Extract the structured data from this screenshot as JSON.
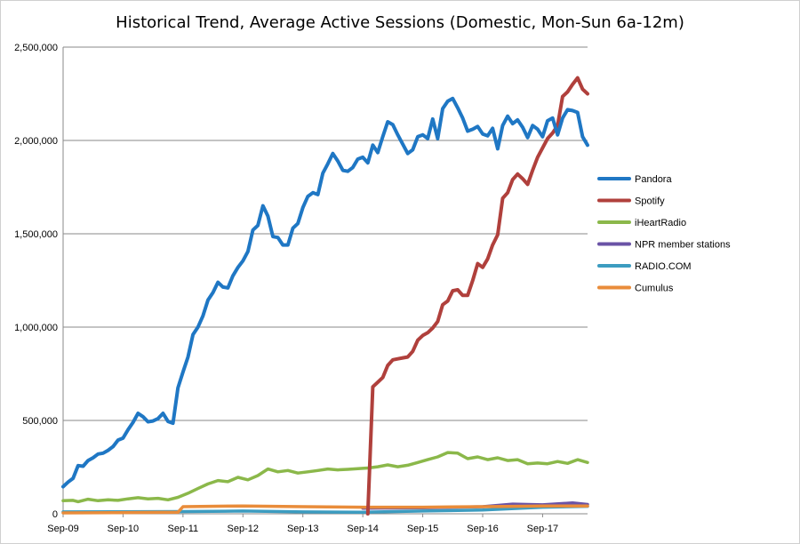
{
  "chart_data": {
    "type": "line",
    "title": "Historical Trend, Average Active Sessions (Domestic, Mon-Sun 6a-12m)",
    "xlabel": "",
    "ylabel": "",
    "ylim": [
      0,
      2500000
    ],
    "y_ticks": [
      0,
      500000,
      1000000,
      1500000,
      2000000,
      2500000
    ],
    "y_tick_labels": [
      "0",
      "500,000",
      "1,000,000",
      "1,500,000",
      "2,000,000",
      "2,500,000"
    ],
    "x_ticks": [
      "Sep-09",
      "Sep-10",
      "Sep-11",
      "Sep-12",
      "Sep-13",
      "Sep-14",
      "Sep-15",
      "Sep-16",
      "Sep-17"
    ],
    "grid": true,
    "legend_position": "right",
    "series": [
      {
        "name": "Pandora",
        "color": "#1F77C4",
        "points": [
          [
            "2009-09",
            145000
          ],
          [
            "2009-10",
            170000
          ],
          [
            "2009-11",
            190000
          ],
          [
            "2009-12",
            258000
          ],
          [
            "2010-01",
            255000
          ],
          [
            "2010-02",
            285000
          ],
          [
            "2010-03",
            300000
          ],
          [
            "2010-04",
            320000
          ],
          [
            "2010-05",
            325000
          ],
          [
            "2010-06",
            340000
          ],
          [
            "2010-07",
            360000
          ],
          [
            "2010-08",
            395000
          ],
          [
            "2010-09",
            405000
          ],
          [
            "2010-10",
            450000
          ],
          [
            "2010-11",
            490000
          ],
          [
            "2010-12",
            538000
          ],
          [
            "2011-01",
            520000
          ],
          [
            "2011-02",
            493000
          ],
          [
            "2011-03",
            497000
          ],
          [
            "2011-04",
            510000
          ],
          [
            "2011-05",
            538000
          ],
          [
            "2011-06",
            495000
          ],
          [
            "2011-07",
            485000
          ],
          [
            "2011-08",
            675000
          ],
          [
            "2011-09",
            760000
          ],
          [
            "2011-10",
            840000
          ],
          [
            "2011-11",
            960000
          ],
          [
            "2011-12",
            1000000
          ],
          [
            "2012-01",
            1060000
          ],
          [
            "2012-02",
            1145000
          ],
          [
            "2012-03",
            1185000
          ],
          [
            "2012-04",
            1240000
          ],
          [
            "2012-05",
            1215000
          ],
          [
            "2012-06",
            1210000
          ],
          [
            "2012-07",
            1275000
          ],
          [
            "2012-08",
            1320000
          ],
          [
            "2012-09",
            1355000
          ],
          [
            "2012-10",
            1405000
          ],
          [
            "2012-11",
            1520000
          ],
          [
            "2012-12",
            1545000
          ],
          [
            "2013-01",
            1650000
          ],
          [
            "2013-02",
            1595000
          ],
          [
            "2013-03",
            1485000
          ],
          [
            "2013-04",
            1480000
          ],
          [
            "2013-05",
            1440000
          ],
          [
            "2013-06",
            1440000
          ],
          [
            "2013-07",
            1530000
          ],
          [
            "2013-08",
            1555000
          ],
          [
            "2013-09",
            1640000
          ],
          [
            "2013-10",
            1700000
          ],
          [
            "2013-11",
            1720000
          ],
          [
            "2013-12",
            1710000
          ],
          [
            "2014-01",
            1825000
          ],
          [
            "2014-02",
            1875000
          ],
          [
            "2014-03",
            1930000
          ],
          [
            "2014-04",
            1890000
          ],
          [
            "2014-05",
            1840000
          ],
          [
            "2014-06",
            1835000
          ],
          [
            "2014-07",
            1855000
          ],
          [
            "2014-08",
            1900000
          ],
          [
            "2014-09",
            1910000
          ],
          [
            "2014-10",
            1880000
          ],
          [
            "2014-11",
            1975000
          ],
          [
            "2014-12",
            1935000
          ],
          [
            "2015-01",
            2020000
          ],
          [
            "2015-02",
            2100000
          ],
          [
            "2015-03",
            2085000
          ],
          [
            "2015-04",
            2030000
          ],
          [
            "2015-05",
            1980000
          ],
          [
            "2015-06",
            1930000
          ],
          [
            "2015-07",
            1950000
          ],
          [
            "2015-08",
            2020000
          ],
          [
            "2015-09",
            2030000
          ],
          [
            "2015-10",
            2010000
          ],
          [
            "2015-11",
            2115000
          ],
          [
            "2015-12",
            2010000
          ],
          [
            "2016-01",
            2170000
          ],
          [
            "2016-02",
            2210000
          ],
          [
            "2016-03",
            2225000
          ],
          [
            "2016-04",
            2175000
          ],
          [
            "2016-05",
            2120000
          ],
          [
            "2016-06",
            2050000
          ],
          [
            "2016-07",
            2060000
          ],
          [
            "2016-08",
            2075000
          ],
          [
            "2016-09",
            2035000
          ],
          [
            "2016-10",
            2025000
          ],
          [
            "2016-11",
            2065000
          ],
          [
            "2016-12",
            1955000
          ],
          [
            "2017-01",
            2080000
          ],
          [
            "2017-02",
            2130000
          ],
          [
            "2017-03",
            2090000
          ],
          [
            "2017-04",
            2110000
          ],
          [
            "2017-05",
            2070000
          ],
          [
            "2017-06",
            2015000
          ],
          [
            "2017-07",
            2080000
          ],
          [
            "2017-08",
            2060000
          ],
          [
            "2017-09",
            2020000
          ],
          [
            "2017-10",
            2105000
          ],
          [
            "2017-11",
            2120000
          ],
          [
            "2017-12",
            2030000
          ],
          [
            "2018-01",
            2120000
          ],
          [
            "2018-02",
            2165000
          ],
          [
            "2018-03",
            2160000
          ],
          [
            "2018-04",
            2150000
          ],
          [
            "2018-05",
            2020000
          ],
          [
            "2018-06",
            1975000
          ]
        ]
      },
      {
        "name": "Spotify",
        "color": "#B0403C",
        "points": [
          [
            "2014-10",
            0
          ],
          [
            "2014-11",
            680000
          ],
          [
            "2014-12",
            705000
          ],
          [
            "2015-01",
            730000
          ],
          [
            "2015-02",
            795000
          ],
          [
            "2015-03",
            825000
          ],
          [
            "2015-04",
            830000
          ],
          [
            "2015-05",
            835000
          ],
          [
            "2015-06",
            840000
          ],
          [
            "2015-07",
            870000
          ],
          [
            "2015-08",
            930000
          ],
          [
            "2015-09",
            955000
          ],
          [
            "2015-10",
            970000
          ],
          [
            "2015-11",
            995000
          ],
          [
            "2015-12",
            1030000
          ],
          [
            "2016-01",
            1120000
          ],
          [
            "2016-02",
            1140000
          ],
          [
            "2016-03",
            1195000
          ],
          [
            "2016-04",
            1200000
          ],
          [
            "2016-05",
            1170000
          ],
          [
            "2016-06",
            1170000
          ],
          [
            "2016-07",
            1250000
          ],
          [
            "2016-08",
            1340000
          ],
          [
            "2016-09",
            1320000
          ],
          [
            "2016-10",
            1365000
          ],
          [
            "2016-11",
            1440000
          ],
          [
            "2016-12",
            1495000
          ],
          [
            "2017-01",
            1690000
          ],
          [
            "2017-02",
            1720000
          ],
          [
            "2017-03",
            1790000
          ],
          [
            "2017-04",
            1820000
          ],
          [
            "2017-05",
            1795000
          ],
          [
            "2017-06",
            1765000
          ],
          [
            "2017-07",
            1840000
          ],
          [
            "2017-08",
            1910000
          ],
          [
            "2017-09",
            1960000
          ],
          [
            "2017-10",
            2010000
          ],
          [
            "2017-11",
            2040000
          ],
          [
            "2017-12",
            2080000
          ],
          [
            "2018-01",
            2235000
          ],
          [
            "2018-02",
            2260000
          ],
          [
            "2018-03",
            2300000
          ],
          [
            "2018-04",
            2335000
          ],
          [
            "2018-05",
            2275000
          ],
          [
            "2018-06",
            2250000
          ]
        ]
      },
      {
        "name": "iHeartRadio",
        "color": "#8BB84A",
        "points": [
          [
            "2009-09",
            70000
          ],
          [
            "2009-11",
            72000
          ],
          [
            "2009-12",
            65000
          ],
          [
            "2010-02",
            78000
          ],
          [
            "2010-04",
            70000
          ],
          [
            "2010-06",
            75000
          ],
          [
            "2010-08",
            72000
          ],
          [
            "2010-10",
            80000
          ],
          [
            "2010-12",
            86000
          ],
          [
            "2011-02",
            80000
          ],
          [
            "2011-04",
            83000
          ],
          [
            "2011-06",
            75000
          ],
          [
            "2011-08",
            88000
          ],
          [
            "2011-10",
            110000
          ],
          [
            "2011-12",
            135000
          ],
          [
            "2012-02",
            160000
          ],
          [
            "2012-04",
            178000
          ],
          [
            "2012-06",
            172000
          ],
          [
            "2012-08",
            195000
          ],
          [
            "2012-10",
            182000
          ],
          [
            "2012-12",
            205000
          ],
          [
            "2013-02",
            240000
          ],
          [
            "2013-04",
            225000
          ],
          [
            "2013-06",
            232000
          ],
          [
            "2013-08",
            218000
          ],
          [
            "2013-10",
            225000
          ],
          [
            "2013-12",
            232000
          ],
          [
            "2014-02",
            240000
          ],
          [
            "2014-04",
            235000
          ],
          [
            "2014-06",
            238000
          ],
          [
            "2014-08",
            242000
          ],
          [
            "2014-10",
            245000
          ],
          [
            "2014-12",
            252000
          ],
          [
            "2015-02",
            262000
          ],
          [
            "2015-04",
            252000
          ],
          [
            "2015-06",
            260000
          ],
          [
            "2015-08",
            275000
          ],
          [
            "2015-10",
            290000
          ],
          [
            "2015-12",
            305000
          ],
          [
            "2016-02",
            328000
          ],
          [
            "2016-04",
            325000
          ],
          [
            "2016-06",
            295000
          ],
          [
            "2016-08",
            305000
          ],
          [
            "2016-10",
            290000
          ],
          [
            "2016-12",
            300000
          ],
          [
            "2017-02",
            285000
          ],
          [
            "2017-04",
            290000
          ],
          [
            "2017-06",
            268000
          ],
          [
            "2017-08",
            272000
          ],
          [
            "2017-10",
            268000
          ],
          [
            "2017-12",
            280000
          ],
          [
            "2018-02",
            270000
          ],
          [
            "2018-04",
            290000
          ],
          [
            "2018-06",
            275000
          ]
        ]
      },
      {
        "name": "NPR member stations",
        "color": "#6A53A6",
        "points": [
          [
            "2014-09",
            30000
          ],
          [
            "2015-09",
            32000
          ],
          [
            "2016-09",
            38000
          ],
          [
            "2017-03",
            52000
          ],
          [
            "2017-09",
            48000
          ],
          [
            "2018-03",
            58000
          ],
          [
            "2018-06",
            50000
          ]
        ]
      },
      {
        "name": "RADIO.COM",
        "color": "#3C9CC0",
        "points": [
          [
            "2009-09",
            10000
          ],
          [
            "2011-09",
            12000
          ],
          [
            "2012-09",
            15000
          ],
          [
            "2013-09",
            10000
          ],
          [
            "2014-09",
            8000
          ],
          [
            "2015-09",
            15000
          ],
          [
            "2016-09",
            20000
          ],
          [
            "2017-09",
            35000
          ],
          [
            "2018-06",
            40000
          ]
        ]
      },
      {
        "name": "Cumulus",
        "color": "#E98C3A",
        "points": [
          [
            "2009-09",
            5000
          ],
          [
            "2011-08",
            8000
          ],
          [
            "2011-09",
            38000
          ],
          [
            "2012-09",
            42000
          ],
          [
            "2013-09",
            38000
          ],
          [
            "2014-09",
            35000
          ],
          [
            "2015-09",
            35000
          ],
          [
            "2016-09",
            38000
          ],
          [
            "2017-09",
            42000
          ],
          [
            "2018-06",
            42000
          ]
        ]
      }
    ]
  }
}
